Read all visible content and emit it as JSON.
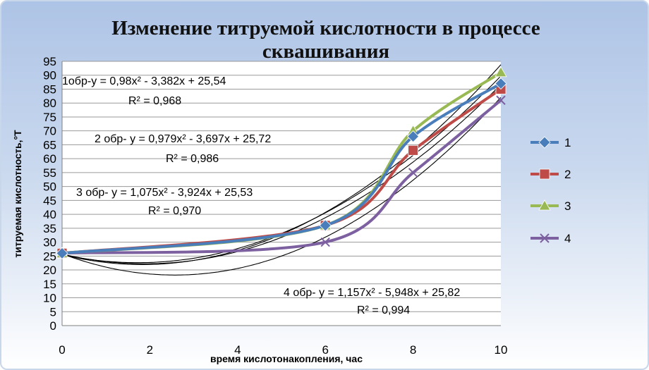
{
  "chart_data": {
    "type": "line",
    "title_lines": [
      "Изменение титруемой кислотности в процессе",
      "сквашивания"
    ],
    "xlabel": "время кислотонакопления, час",
    "ylabel": "титруемая кислотность,°Т",
    "x": [
      0,
      6,
      8,
      10
    ],
    "xlim": [
      0,
      10
    ],
    "ylim": [
      0,
      95
    ],
    "xticks": [
      0,
      2,
      4,
      6,
      8,
      10
    ],
    "yticks": [
      0,
      5,
      10,
      15,
      20,
      25,
      30,
      35,
      40,
      45,
      50,
      55,
      60,
      65,
      70,
      75,
      80,
      85,
      90,
      95
    ],
    "grid": "horizontal",
    "legend_position": "right",
    "series": [
      {
        "name": "1",
        "values": [
          26,
          36,
          68,
          87
        ],
        "color": "#4a7ebb",
        "marker": "diamond"
      },
      {
        "name": "2",
        "values": [
          26,
          36,
          63,
          85
        ],
        "color": "#be4b48",
        "marker": "square"
      },
      {
        "name": "3",
        "values": [
          26,
          36,
          70,
          91
        ],
        "color": "#98b954",
        "marker": "triangle"
      },
      {
        "name": "4",
        "values": [
          26,
          30,
          55,
          81
        ],
        "color": "#7d60a0",
        "marker": "x"
      }
    ],
    "trendlines": [
      {
        "a": 0.98,
        "b": -3.382,
        "c": 25.54
      },
      {
        "a": 0.979,
        "b": -3.697,
        "c": 25.72
      },
      {
        "a": 1.075,
        "b": -3.924,
        "c": 25.53
      },
      {
        "a": 1.157,
        "b": -5.948,
        "c": 25.82
      }
    ],
    "annotations": [
      {
        "line1": "1обр-y = 0,98x² - 3,382x + 25,54",
        "line2": "R² = 0,968"
      },
      {
        "line1": "2 обр- y = 0,979x² - 3,697x + 25,72",
        "line2": "R² = 0,986"
      },
      {
        "line1": "3 обр- y = 1,075x² - 3,924x + 25,53",
        "line2": "R² = 0,970"
      },
      {
        "line1": "4 обр- y = 1,157x² - 5,948x + 25,82",
        "line2": "R² = 0,994"
      }
    ]
  }
}
